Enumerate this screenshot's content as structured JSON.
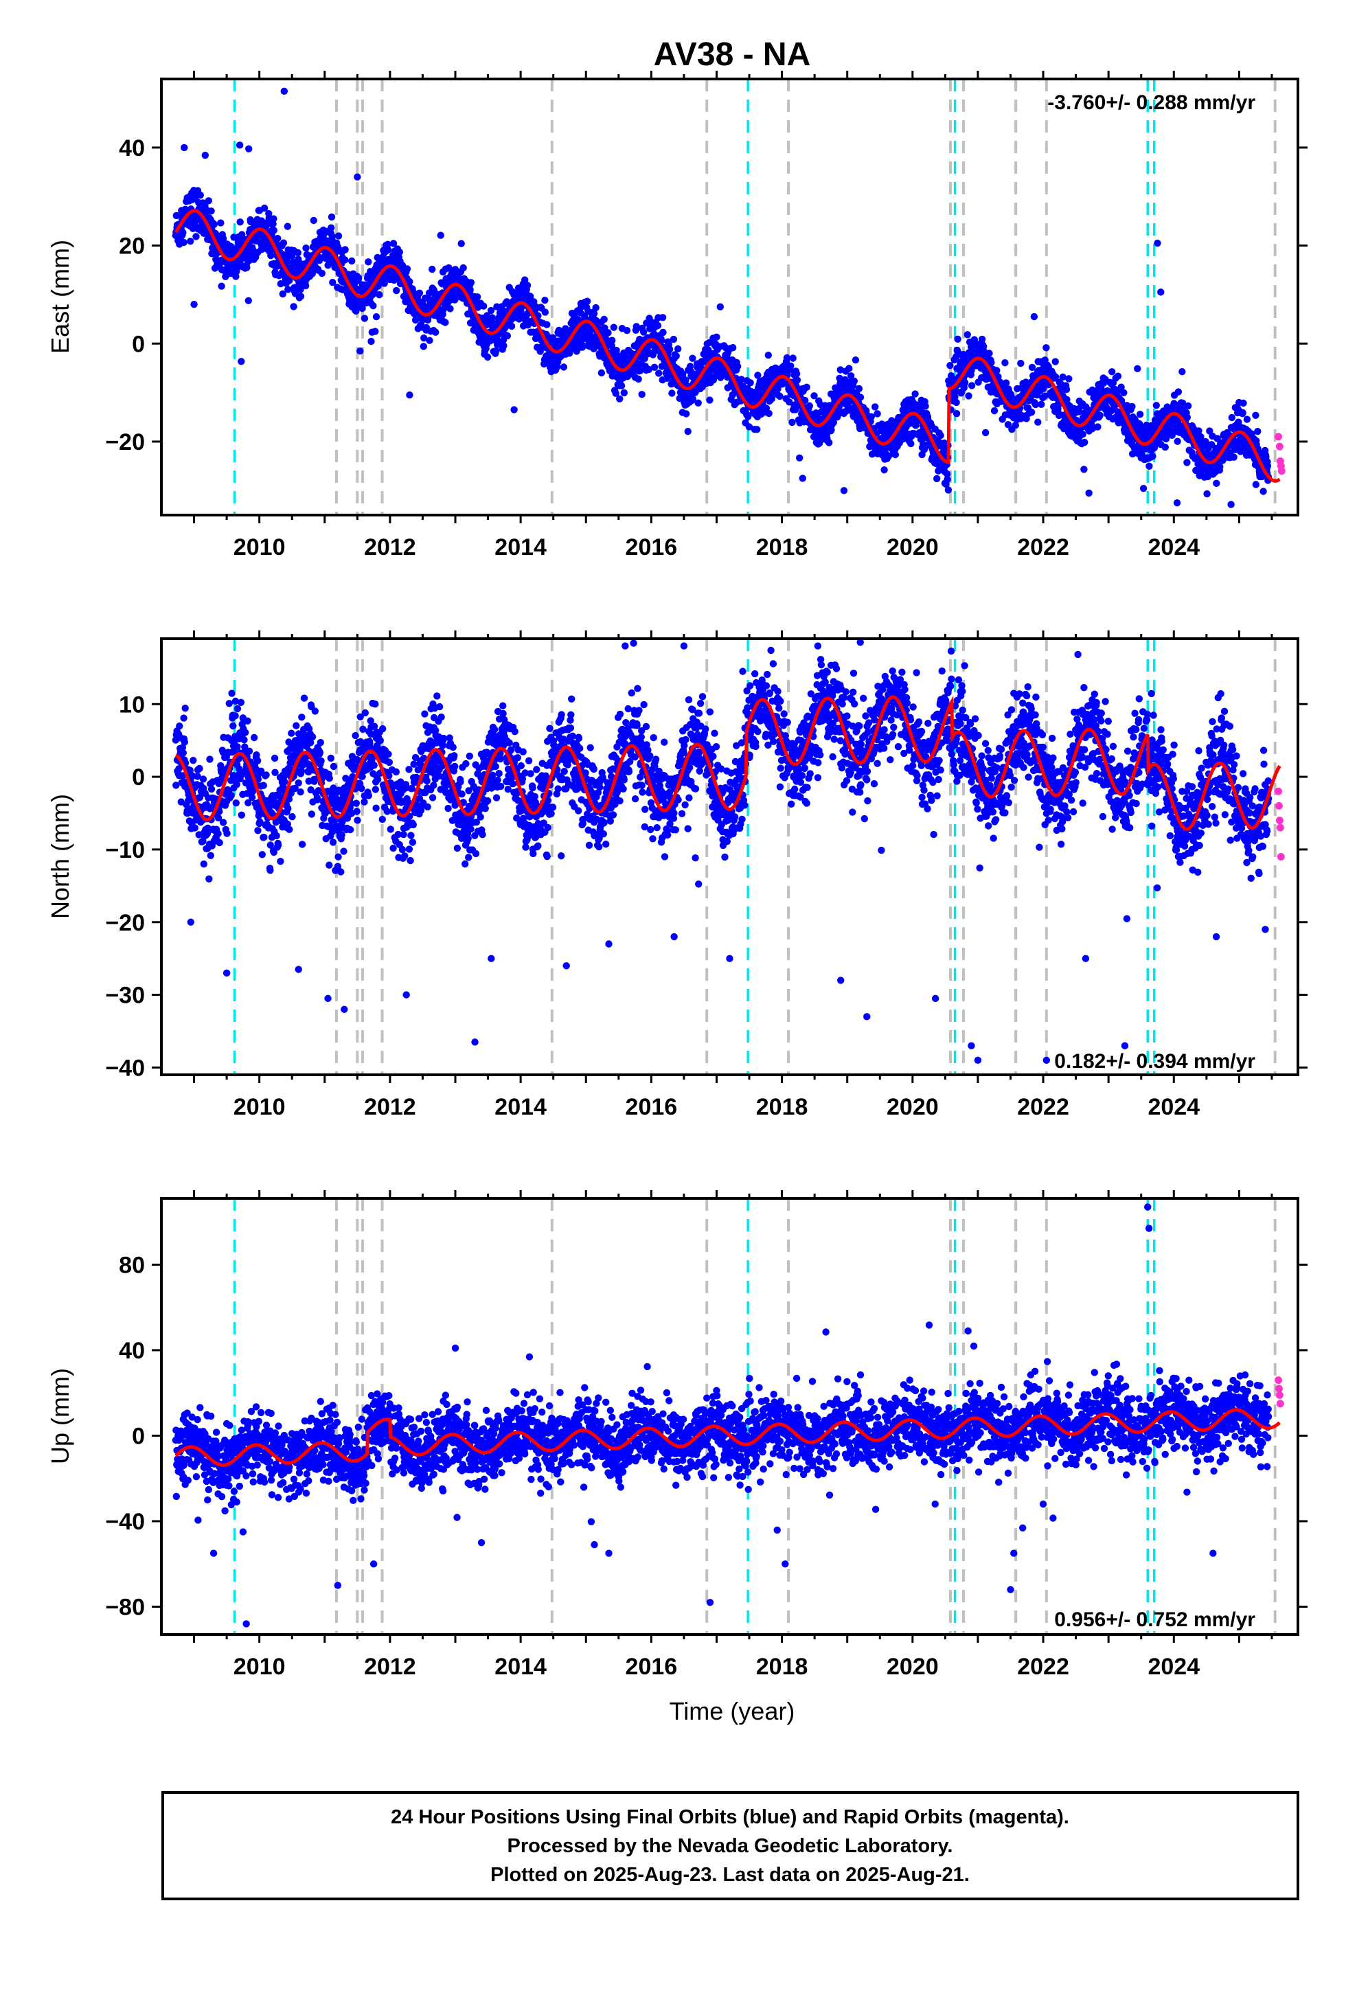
{
  "figure_title": "AV38 - NA",
  "x_axis_label": "Time (year)",
  "caption": {
    "line1": "24 Hour Positions Using Final Orbits (blue) and Rapid Orbits (magenta).",
    "line2": "Processed by the Nevada Geodetic Laboratory.",
    "line3": "Plotted on 2025-Aug-23. Last data on 2025-Aug-21."
  },
  "colors": {
    "final_orbits": "#0000ff",
    "rapid_orbits": "#ff33cc",
    "model_fit": "#ff0000",
    "event_gray": "#c0c0c0",
    "event_cyan": "#00e5e5"
  },
  "chart_data": [
    {
      "type": "scatter",
      "component": "East",
      "ylabel": "East (mm)",
      "xlim": [
        2008.5,
        2025.9
      ],
      "ylim": [
        -35,
        54
      ],
      "x_ticks": [
        2010,
        2012,
        2014,
        2016,
        2018,
        2020,
        2022,
        2024
      ],
      "y_ticks": [
        -20,
        0,
        20,
        40
      ],
      "y_tick_labels": [
        "−20",
        "0",
        "20",
        "40"
      ],
      "rate_text": "-3.760+/- 0.288 mm/yr",
      "rate_position": "top-right",
      "trend": {
        "rate_mm_per_yr": -3.76,
        "value_at_2008_7": 24.3,
        "annual_amplitude": 4.0,
        "annual_phase_year_fraction": 0.78
      },
      "offsets": [
        {
          "x": 2020.55,
          "dy": 15.0
        }
      ],
      "scatter_noise_mm": 2.3,
      "outliers": [
        [
          2010.38,
          51.5
        ],
        [
          2008.85,
          40.0
        ],
        [
          2009.7,
          40.5
        ],
        [
          2011.5,
          34.0
        ],
        [
          2012.3,
          -10.5
        ],
        [
          2013.9,
          -13.5
        ],
        [
          2018.95,
          -30.0
        ],
        [
          2022.7,
          -30.5
        ],
        [
          2023.75,
          20.5
        ],
        [
          2023.8,
          10.5
        ],
        [
          2024.05,
          -32.5
        ],
        [
          2009.0,
          8.0
        ]
      ],
      "rapid_orbits": [
        [
          2025.6,
          -19.0
        ],
        [
          2025.62,
          -21.0
        ],
        [
          2025.63,
          -24.0
        ],
        [
          2025.64,
          -25.0
        ],
        [
          2025.65,
          -26.0
        ]
      ]
    },
    {
      "type": "scatter",
      "component": "North",
      "ylabel": "North (mm)",
      "xlim": [
        2008.5,
        2025.9
      ],
      "ylim": [
        -41,
        19
      ],
      "x_ticks": [
        2010,
        2012,
        2014,
        2016,
        2018,
        2020,
        2022,
        2024
      ],
      "y_ticks": [
        -40,
        -30,
        -20,
        -10,
        0,
        10
      ],
      "y_tick_labels": [
        "−40",
        "−30",
        "−20",
        "−10",
        "0",
        "10"
      ],
      "rate_text": "0.182+/- 0.394 mm/yr",
      "rate_position": "bottom-right",
      "trend": {
        "rate_mm_per_yr": 0.18,
        "value_at_2008_7": -1.5,
        "annual_amplitude": 4.5,
        "annual_phase_year_fraction": 0.45
      },
      "offsets": [
        {
          "x": 2017.45,
          "dy": 6.0
        },
        {
          "x": 2020.6,
          "dy": -5.0
        },
        {
          "x": 2023.6,
          "dy": -5.0
        }
      ],
      "scatter_noise_mm": 3.0,
      "outliers": [
        [
          2008.95,
          -20.0
        ],
        [
          2009.5,
          -27.0
        ],
        [
          2010.6,
          -26.5
        ],
        [
          2011.05,
          -30.5
        ],
        [
          2011.3,
          -32.0
        ],
        [
          2012.25,
          -30.0
        ],
        [
          2013.3,
          -36.5
        ],
        [
          2013.55,
          -25.0
        ],
        [
          2014.7,
          -26.0
        ],
        [
          2015.35,
          -23.0
        ],
        [
          2016.35,
          -22.0
        ],
        [
          2017.2,
          -25.0
        ],
        [
          2016.5,
          18.0
        ],
        [
          2017.4,
          14.5
        ],
        [
          2018.9,
          -28.0
        ],
        [
          2019.3,
          -33.0
        ],
        [
          2020.35,
          -30.5
        ],
        [
          2020.9,
          -37.0
        ],
        [
          2021.0,
          -39.0
        ],
        [
          2022.05,
          -39.0
        ],
        [
          2022.65,
          -25.0
        ],
        [
          2023.25,
          -37.0
        ],
        [
          2024.65,
          -22.0
        ],
        [
          2025.4,
          -21.0
        ],
        [
          2015.6,
          18.0
        ],
        [
          2018.55,
          18.0
        ],
        [
          2019.2,
          18.5
        ]
      ],
      "rapid_orbits": [
        [
          2025.6,
          -2.0
        ],
        [
          2025.61,
          -4.0
        ],
        [
          2025.62,
          -6.0
        ],
        [
          2025.63,
          -7.0
        ],
        [
          2025.64,
          -11.0
        ]
      ]
    },
    {
      "type": "scatter",
      "component": "Up",
      "ylabel": "Up (mm)",
      "xlim": [
        2008.5,
        2025.9
      ],
      "ylim": [
        -93,
        111
      ],
      "x_ticks": [
        2010,
        2012,
        2014,
        2016,
        2018,
        2020,
        2022,
        2024
      ],
      "y_ticks": [
        -80,
        -40,
        0,
        40,
        80
      ],
      "y_tick_labels": [
        "−80",
        "−40",
        "0",
        "40",
        "80"
      ],
      "rate_text": "0.956+/- 0.752 mm/yr",
      "rate_position": "bottom-right",
      "trend": {
        "rate_mm_per_yr": 0.96,
        "value_at_2008_7": -10.0,
        "annual_amplitude": 4.5,
        "annual_phase_year_fraction": 0.7
      },
      "offsets": [
        {
          "x": 2011.65,
          "dy": 10.0
        },
        {
          "x": 2012.0,
          "dy": -8.0
        }
      ],
      "scatter_noise_mm": 8.0,
      "outliers": [
        [
          2009.3,
          -55.0
        ],
        [
          2009.75,
          -45.0
        ],
        [
          2009.8,
          -88.0
        ],
        [
          2011.2,
          -70.0
        ],
        [
          2011.75,
          -60.0
        ],
        [
          2013.4,
          -50.0
        ],
        [
          2015.35,
          -55.0
        ],
        [
          2016.9,
          -78.0
        ],
        [
          2018.05,
          -60.0
        ],
        [
          2020.85,
          49.0
        ],
        [
          2021.5,
          -72.0
        ],
        [
          2021.55,
          -55.0
        ],
        [
          2022.0,
          -32.0
        ],
        [
          2023.6,
          107.0
        ],
        [
          2023.62,
          97.0
        ],
        [
          2024.6,
          -55.0
        ],
        [
          2013.0,
          41.0
        ]
      ],
      "rapid_orbits": [
        [
          2025.6,
          26.0
        ],
        [
          2025.61,
          22.0
        ],
        [
          2025.62,
          19.0
        ],
        [
          2025.63,
          15.0
        ]
      ]
    }
  ],
  "event_lines": {
    "gray": [
      2011.18,
      2011.5,
      2011.58,
      2011.88,
      2014.48,
      2016.85,
      2018.1,
      2020.58,
      2020.78,
      2021.58,
      2022.05,
      2025.55
    ],
    "cyan": [
      2009.62,
      2017.48,
      2020.65,
      2023.6,
      2023.7
    ]
  }
}
